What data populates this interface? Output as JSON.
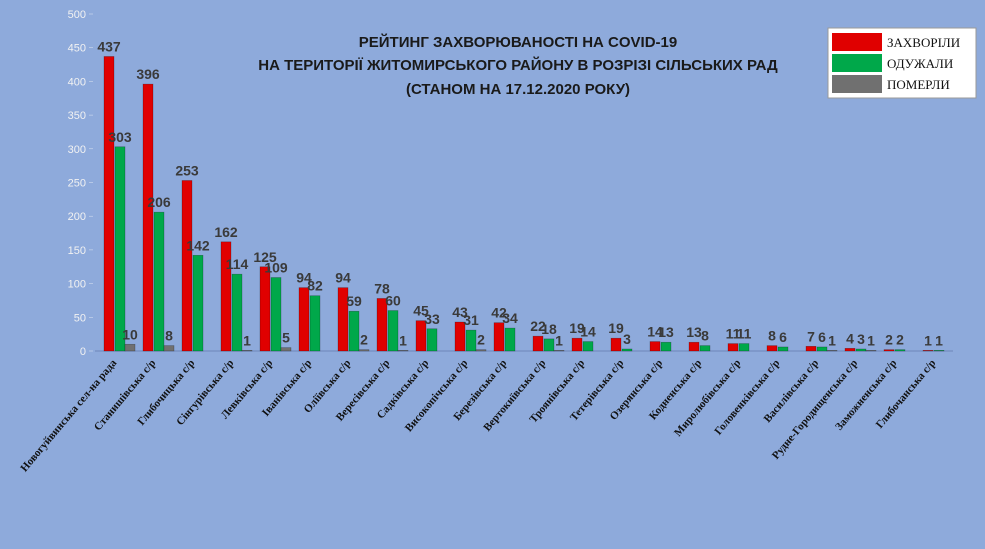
{
  "chart_data": {
    "type": "bar",
    "title": [
      "РЕЙТИНГ ЗАХВОРЮВАНОСТІ НА COVID-19",
      "НА ТЕРИТОРІЇ ЖИТОМИРСЬКОГО РАЙОНУ В РОЗРІЗІ СІЛЬСЬКИХ РАД",
      "(СТАНОМ НА 17.12.2020 РОКУ)"
    ],
    "categories": [
      "Новогуйвинська сел-на рада",
      "Станишівська с/р",
      "Глибочицька с/р",
      "Сінгурівська с/р",
      "Левківська с/р",
      "Іванівська с/р",
      "Оліївська с/р",
      "Вересівська с/р",
      "Садківська с/р",
      "Високопічська с/р",
      "Березівська с/р",
      "Вертокиївська с/р",
      "Троянівська с/р",
      "Тетерівська с/р",
      "Озерянська с/р",
      "Кодненська с/р",
      "Миролюбівська с/р",
      "Головенківська с/р",
      "Василівська с/р",
      "Рудне-Городищенська с/р",
      "Заможненська с/р",
      "Глибочанська с/р"
    ],
    "series": [
      {
        "name": "ЗАХВОРІЛИ",
        "color": "#e00000",
        "values": [
          437,
          396,
          253,
          162,
          125,
          94,
          94,
          78,
          45,
          43,
          42,
          22,
          19,
          19,
          14,
          13,
          11,
          8,
          7,
          4,
          2,
          1
        ]
      },
      {
        "name": "ОДУЖАЛИ",
        "color": "#00a84a",
        "values": [
          303,
          206,
          142,
          114,
          109,
          82,
          59,
          60,
          33,
          31,
          34,
          18,
          14,
          3,
          13,
          8,
          11,
          6,
          6,
          3,
          2,
          1
        ]
      },
      {
        "name": "ПОМЕРЛИ",
        "color": "#707070",
        "values": [
          10,
          8,
          null,
          1,
          5,
          null,
          2,
          1,
          null,
          2,
          null,
          1,
          null,
          null,
          null,
          null,
          null,
          null,
          1,
          1,
          null,
          null
        ]
      }
    ],
    "ylim": [
      0,
      500
    ],
    "yticks": [
      0,
      50,
      100,
      150,
      200,
      250,
      300,
      350,
      400,
      450,
      500
    ],
    "legend": "top-right"
  }
}
